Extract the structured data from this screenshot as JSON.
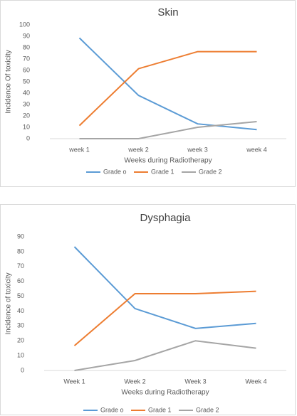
{
  "chart_data": [
    {
      "type": "line",
      "title": "Skin",
      "x_label": "Weeks during Radiotherapy",
      "y_label": "Incidence Of toxicity",
      "categories": [
        "week 1",
        "week 2",
        "week 3",
        "week 4"
      ],
      "ylim": [
        0,
        100
      ],
      "yticks": [
        0,
        10,
        20,
        30,
        40,
        50,
        60,
        70,
        80,
        90,
        100
      ],
      "grid": false,
      "series": [
        {
          "name": "Grade o",
          "color": "#5b9bd5",
          "values": [
            88.5,
            38,
            13,
            8
          ]
        },
        {
          "name": "Grade 1",
          "color": "#ed7d31",
          "values": [
            11.5,
            61.5,
            76.5,
            76.5
          ]
        },
        {
          "name": "Grade 2",
          "color": "#a5a5a5",
          "values": [
            0,
            0,
            10,
            15
          ]
        }
      ]
    },
    {
      "type": "line",
      "title": "Dysphagia",
      "x_label": "Weeks during Radiotherapy",
      "y_label": "Incidence of toxicity",
      "categories": [
        "Week 1",
        "Week 2",
        "Week 3",
        "Week 4"
      ],
      "ylim": [
        0,
        90
      ],
      "yticks": [
        0,
        10,
        20,
        30,
        40,
        50,
        60,
        70,
        80,
        90
      ],
      "grid": false,
      "series": [
        {
          "name": "Grade o",
          "color": "#5b9bd5",
          "values": [
            83.3,
            41.7,
            28.3,
            31.7
          ]
        },
        {
          "name": "Grade 1",
          "color": "#ed7d31",
          "values": [
            16.7,
            51.7,
            51.7,
            53.3
          ]
        },
        {
          "name": "Grade 2",
          "color": "#a5a5a5",
          "values": [
            0,
            6.7,
            20,
            15
          ]
        }
      ]
    }
  ]
}
